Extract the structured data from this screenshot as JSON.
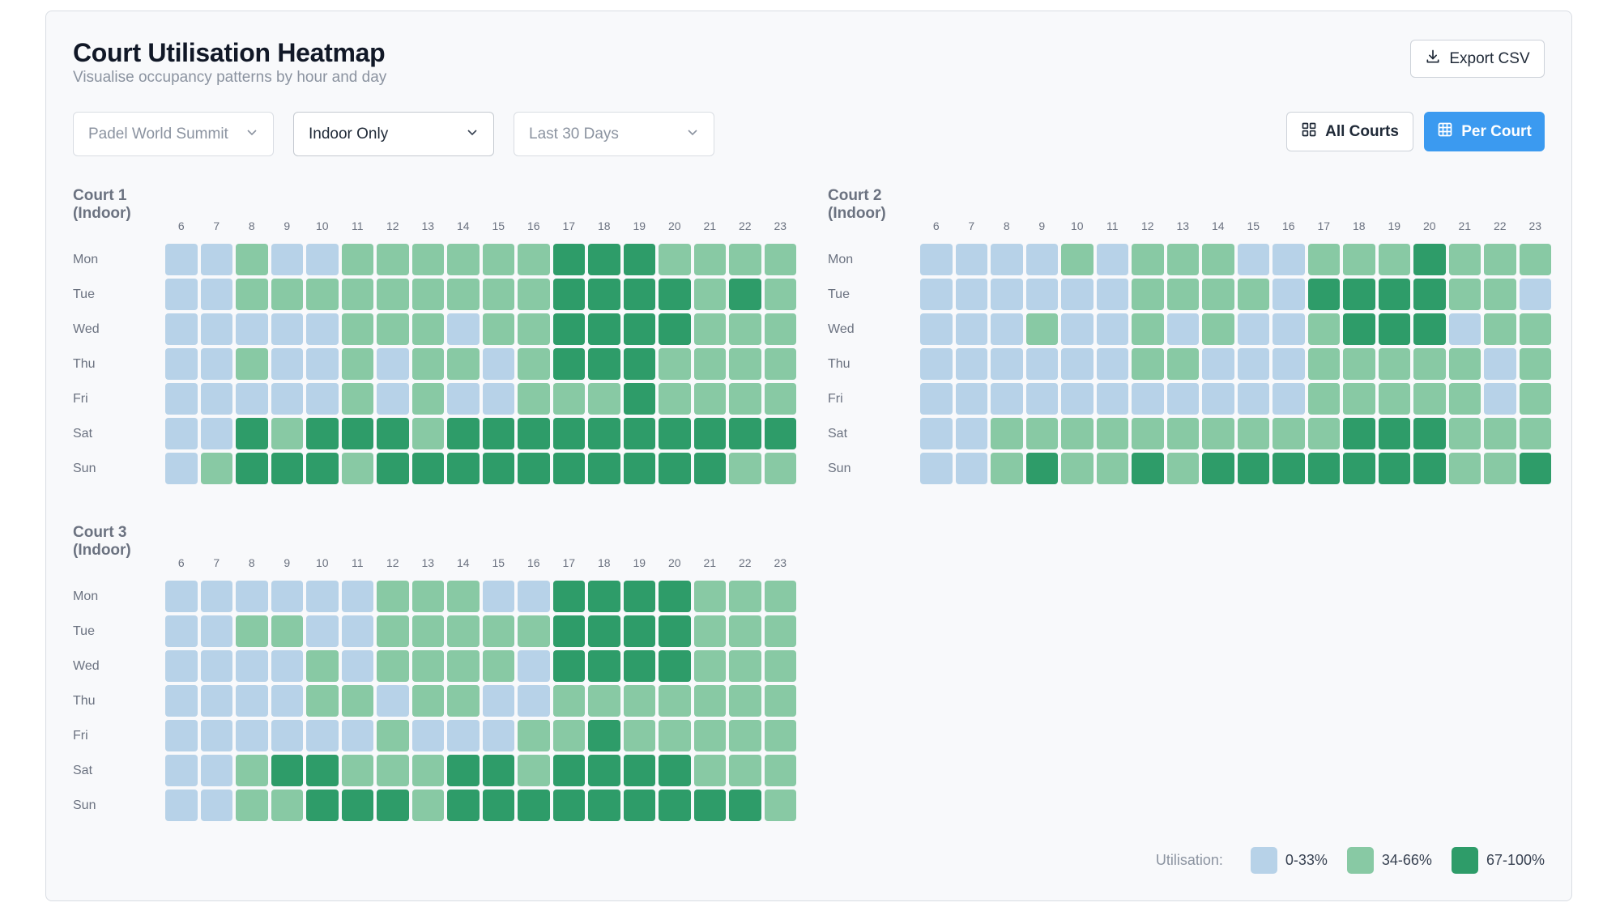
{
  "header": {
    "title": "Court Utilisation Heatmap",
    "subtitle": "Visualise occupancy patterns by hour and day",
    "export_label": "Export CSV"
  },
  "filters": {
    "event": "Padel World Summit",
    "venue": "Indoor Only",
    "period": "Last 30 Days"
  },
  "view_toggle": {
    "all_label": "All Courts",
    "per_label": "Per Court",
    "selected": "Per Court",
    "accent": "#3b9af0"
  },
  "hours": [
    "6",
    "7",
    "8",
    "9",
    "10",
    "11",
    "12",
    "13",
    "14",
    "15",
    "16",
    "17",
    "18",
    "19",
    "20",
    "21",
    "22",
    "23"
  ],
  "days": [
    "Mon",
    "Tue",
    "Wed",
    "Thu",
    "Fri",
    "Sat",
    "Sun"
  ],
  "levels": [
    "0-33%",
    "34-66%",
    "67-100%"
  ],
  "level_colors": [
    "#b7d2e8",
    "#88c9a4",
    "#2e9c69"
  ],
  "courts": [
    {
      "name": "Court 1 (Indoor)",
      "grid": [
        [
          0,
          0,
          1,
          0,
          0,
          1,
          1,
          1,
          1,
          1,
          1,
          2,
          2,
          2,
          1,
          1,
          1,
          1
        ],
        [
          0,
          0,
          1,
          1,
          1,
          1,
          1,
          1,
          1,
          1,
          1,
          2,
          2,
          2,
          2,
          1,
          2,
          1
        ],
        [
          0,
          0,
          0,
          0,
          0,
          1,
          1,
          1,
          0,
          1,
          1,
          2,
          2,
          2,
          2,
          1,
          1,
          1
        ],
        [
          0,
          0,
          1,
          0,
          0,
          1,
          0,
          1,
          1,
          0,
          1,
          2,
          2,
          2,
          1,
          1,
          1,
          1
        ],
        [
          0,
          0,
          0,
          0,
          0,
          1,
          0,
          1,
          0,
          0,
          1,
          1,
          1,
          2,
          1,
          1,
          1,
          1
        ],
        [
          0,
          0,
          2,
          1,
          2,
          2,
          2,
          1,
          2,
          2,
          2,
          2,
          2,
          2,
          2,
          2,
          2,
          2
        ],
        [
          0,
          1,
          2,
          2,
          2,
          1,
          2,
          2,
          2,
          2,
          2,
          2,
          2,
          2,
          2,
          2,
          1,
          1
        ]
      ]
    },
    {
      "name": "Court 2 (Indoor)",
      "grid": [
        [
          0,
          0,
          0,
          0,
          1,
          0,
          1,
          1,
          1,
          0,
          0,
          1,
          1,
          1,
          2,
          1,
          1,
          1
        ],
        [
          0,
          0,
          0,
          0,
          0,
          0,
          1,
          1,
          1,
          1,
          0,
          2,
          2,
          2,
          2,
          1,
          1,
          0
        ],
        [
          0,
          0,
          0,
          1,
          0,
          0,
          1,
          0,
          1,
          0,
          0,
          1,
          2,
          2,
          2,
          0,
          1,
          1
        ],
        [
          0,
          0,
          0,
          0,
          0,
          0,
          1,
          1,
          0,
          0,
          0,
          1,
          1,
          1,
          1,
          1,
          0,
          1
        ],
        [
          0,
          0,
          0,
          0,
          0,
          0,
          0,
          0,
          0,
          0,
          0,
          1,
          1,
          1,
          1,
          1,
          0,
          1
        ],
        [
          0,
          0,
          1,
          1,
          1,
          1,
          1,
          1,
          1,
          1,
          1,
          1,
          2,
          2,
          2,
          1,
          1,
          1
        ],
        [
          0,
          0,
          1,
          2,
          1,
          1,
          2,
          1,
          2,
          2,
          2,
          2,
          2,
          2,
          2,
          1,
          1,
          2
        ]
      ]
    },
    {
      "name": "Court 3 (Indoor)",
      "grid": [
        [
          0,
          0,
          0,
          0,
          0,
          0,
          1,
          1,
          1,
          0,
          0,
          2,
          2,
          2,
          2,
          1,
          1,
          1
        ],
        [
          0,
          0,
          1,
          1,
          0,
          0,
          1,
          1,
          1,
          1,
          1,
          2,
          2,
          2,
          2,
          1,
          1,
          1
        ],
        [
          0,
          0,
          0,
          0,
          1,
          0,
          1,
          1,
          1,
          1,
          0,
          2,
          2,
          2,
          2,
          1,
          1,
          1
        ],
        [
          0,
          0,
          0,
          0,
          1,
          1,
          0,
          1,
          1,
          0,
          0,
          1,
          1,
          1,
          1,
          1,
          1,
          1
        ],
        [
          0,
          0,
          0,
          0,
          0,
          0,
          1,
          0,
          0,
          0,
          1,
          1,
          2,
          1,
          1,
          1,
          1,
          1
        ],
        [
          0,
          0,
          1,
          2,
          2,
          1,
          1,
          1,
          2,
          2,
          1,
          2,
          2,
          2,
          2,
          1,
          1,
          1
        ],
        [
          0,
          0,
          1,
          1,
          2,
          2,
          2,
          1,
          2,
          2,
          2,
          2,
          2,
          2,
          2,
          2,
          2,
          1
        ]
      ]
    }
  ],
  "legend": {
    "label": "Utilisation:"
  }
}
